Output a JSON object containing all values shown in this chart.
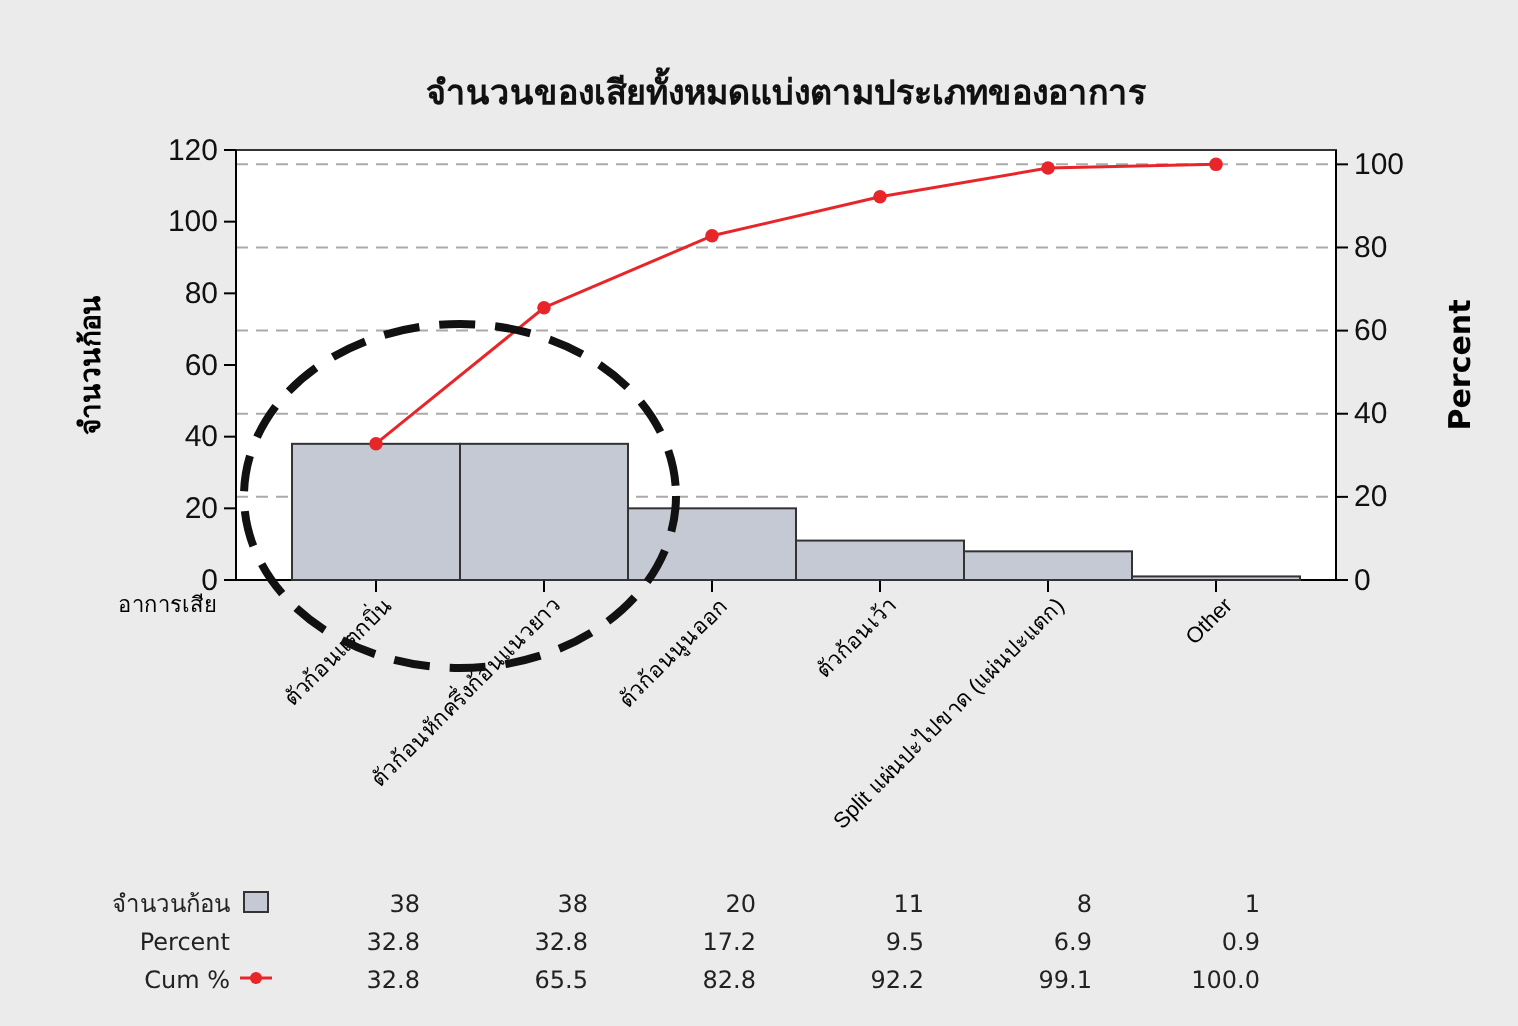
{
  "chart_data": {
    "type": "bar",
    "title": "จำนวนของเสียทั้งหมดแบ่งตามประเภทของอาการ",
    "xlabel": "อาการเสีย",
    "ylabel": "จำนวนก้อน",
    "y2label": "Percent",
    "categories": [
      "ตัวก้อนแตกบิ่น",
      "ตัวก้อนหักครึ่งก้อนแนวยาว",
      "ตัวก้อนนูนออก",
      "ตัวก้อนเว้า",
      "Split แผ่นปะไปขาด (แผ่นปะแตก)",
      "Other"
    ],
    "series": [
      {
        "name": "จำนวนก้อน",
        "color": "#c5c9d3",
        "values": [
          38,
          38,
          20,
          11,
          8,
          1
        ],
        "value_labels": [
          "38",
          "38",
          "20",
          "11",
          "8",
          "1"
        ]
      },
      {
        "name": "Cum %",
        "type": "line",
        "axis": "y2",
        "color": "#e8262a",
        "values": [
          32.8,
          65.5,
          82.8,
          92.2,
          99.1,
          100.0
        ],
        "value_labels": [
          "32.8",
          "65.5",
          "82.8",
          "92.2",
          "99.1",
          "100.0"
        ]
      }
    ],
    "annotations": [
      "Percent",
      "32.8",
      "32.8",
      "17.2",
      "9.5",
      "6.9",
      "0.9"
    ],
    "ylim": [
      0,
      120
    ],
    "yticks": [
      0,
      20,
      40,
      60,
      80,
      100,
      120
    ],
    "y2lim": [
      0,
      103.45
    ],
    "y2ticks": [
      0,
      20,
      40,
      60,
      80,
      100
    ],
    "grid": "y2",
    "legend": "bottom left",
    "marker": "circle",
    "line_style": "solid"
  }
}
